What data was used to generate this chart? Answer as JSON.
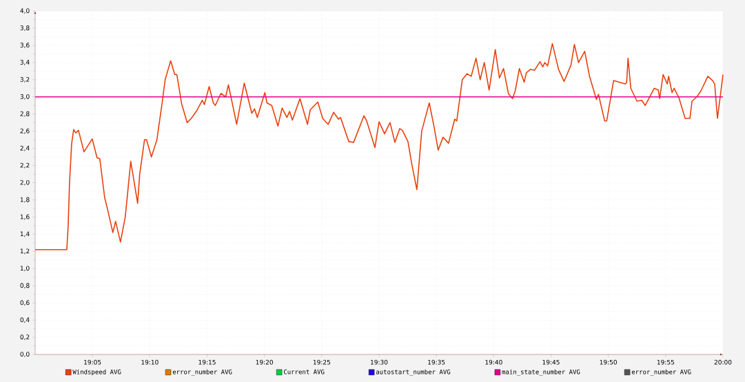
{
  "chart_data": {
    "type": "line",
    "xlim": [
      19,
      20
    ],
    "xticks": [
      {
        "value": 19.0833,
        "label": "19:05"
      },
      {
        "value": 19.1667,
        "label": "19:10"
      },
      {
        "value": 19.25,
        "label": "19:15"
      },
      {
        "value": 19.3333,
        "label": "19:20"
      },
      {
        "value": 19.4167,
        "label": "19:25"
      },
      {
        "value": 19.5,
        "label": "19:30"
      },
      {
        "value": 19.5833,
        "label": "19:35"
      },
      {
        "value": 19.6667,
        "label": "19:40"
      },
      {
        "value": 19.75,
        "label": "19:45"
      },
      {
        "value": 19.8333,
        "label": "19:50"
      },
      {
        "value": 19.9167,
        "label": "19:55"
      },
      {
        "value": 20,
        "label": "20:00"
      }
    ],
    "ylim": [
      0,
      4
    ],
    "yticks": [
      {
        "value": 0,
        "label": "0,0"
      },
      {
        "value": 0.2,
        "label": "0,2"
      },
      {
        "value": 0.4,
        "label": "0,4"
      },
      {
        "value": 0.6,
        "label": "0,6"
      },
      {
        "value": 0.8,
        "label": "0,8"
      },
      {
        "value": 1.0,
        "label": "1,0"
      },
      {
        "value": 1.2,
        "label": "1,2"
      },
      {
        "value": 1.4,
        "label": "1,4"
      },
      {
        "value": 1.6,
        "label": "1,6"
      },
      {
        "value": 1.8,
        "label": "1,8"
      },
      {
        "value": 2.0,
        "label": "2,0"
      },
      {
        "value": 2.2,
        "label": "2,2"
      },
      {
        "value": 2.4,
        "label": "2,4"
      },
      {
        "value": 2.6,
        "label": "2,6"
      },
      {
        "value": 2.8,
        "label": "2,8"
      },
      {
        "value": 3.0,
        "label": "3,0"
      },
      {
        "value": 3.2,
        "label": "3,2"
      },
      {
        "value": 3.4,
        "label": "3,4"
      },
      {
        "value": 3.6,
        "label": "3,6"
      },
      {
        "value": 3.8,
        "label": "3,8"
      },
      {
        "value": 4.0,
        "label": "4,0"
      }
    ],
    "grid": true,
    "legend": "bottom",
    "marker": "none",
    "line_style": "solid",
    "series": [
      {
        "name": "Windspeed AVG",
        "color": "#e8400c",
        "x": [
          19.0,
          19.046,
          19.048,
          19.05,
          19.053,
          19.056,
          19.059,
          19.063,
          19.071,
          19.083,
          19.09,
          19.094,
          19.101,
          19.105,
          19.113,
          19.117,
          19.124,
          19.131,
          19.139,
          19.149,
          19.152,
          19.159,
          19.162,
          19.169,
          19.177,
          19.185,
          19.189,
          19.197,
          19.203,
          19.206,
          19.213,
          19.221,
          19.227,
          19.235,
          19.243,
          19.246,
          19.253,
          19.259,
          19.262,
          19.27,
          19.277,
          19.281,
          19.293,
          19.304,
          19.315,
          19.319,
          19.323,
          19.334,
          19.337,
          19.344,
          19.353,
          19.359,
          19.366,
          19.37,
          19.374,
          19.385,
          19.396,
          19.4,
          19.411,
          19.418,
          19.426,
          19.434,
          19.441,
          19.444,
          19.456,
          19.463,
          19.478,
          19.482,
          19.494,
          19.5,
          19.508,
          19.516,
          19.523,
          19.53,
          19.534,
          19.542,
          19.548,
          19.555,
          19.562,
          19.573,
          19.58,
          19.586,
          19.593,
          19.601,
          19.61,
          19.613,
          19.621,
          19.628,
          19.634,
          19.641,
          19.647,
          19.653,
          19.66,
          19.669,
          19.675,
          19.681,
          19.688,
          19.694,
          19.698,
          19.704,
          19.711,
          19.714,
          19.72,
          19.726,
          19.734,
          19.738,
          19.741,
          19.745,
          19.752,
          19.761,
          19.769,
          19.779,
          19.784,
          19.79,
          19.799,
          19.806,
          19.816,
          19.819,
          19.828,
          19.831,
          19.841,
          19.858,
          19.86,
          19.862,
          19.866,
          19.875,
          19.882,
          19.887,
          19.9,
          19.906,
          19.908,
          19.913,
          19.919,
          19.921,
          19.926,
          19.929,
          19.936,
          19.945,
          19.952,
          19.955,
          19.962,
          19.968,
          19.978,
          19.985,
          19.988,
          19.992,
          19.996,
          20.0
        ],
        "values": [
          1.22,
          1.22,
          1.5,
          2.0,
          2.45,
          2.62,
          2.58,
          2.61,
          2.36,
          2.51,
          2.29,
          2.28,
          1.83,
          1.7,
          1.42,
          1.55,
          1.31,
          1.6,
          2.25,
          1.76,
          2.1,
          2.5,
          2.5,
          2.3,
          2.5,
          2.95,
          3.2,
          3.42,
          3.26,
          3.26,
          2.92,
          2.7,
          2.75,
          2.84,
          2.96,
          2.91,
          3.12,
          2.93,
          2.9,
          3.04,
          3.0,
          3.14,
          2.68,
          3.16,
          2.81,
          2.86,
          2.76,
          3.05,
          2.93,
          2.9,
          2.66,
          2.87,
          2.76,
          2.83,
          2.73,
          2.98,
          2.68,
          2.85,
          2.94,
          2.75,
          2.68,
          2.82,
          2.74,
          2.76,
          2.48,
          2.47,
          2.78,
          2.72,
          2.41,
          2.71,
          2.57,
          2.7,
          2.47,
          2.63,
          2.61,
          2.48,
          2.2,
          1.92,
          2.6,
          2.93,
          2.65,
          2.38,
          2.53,
          2.46,
          2.74,
          2.72,
          3.2,
          3.27,
          3.24,
          3.45,
          3.2,
          3.4,
          3.08,
          3.55,
          3.22,
          3.33,
          3.04,
          2.98,
          3.07,
          3.33,
          3.17,
          3.28,
          3.32,
          3.31,
          3.41,
          3.35,
          3.4,
          3.36,
          3.62,
          3.32,
          3.18,
          3.37,
          3.61,
          3.4,
          3.53,
          3.24,
          2.97,
          3.03,
          2.72,
          2.72,
          3.19,
          3.15,
          3.17,
          3.45,
          3.1,
          2.95,
          2.96,
          2.9,
          3.1,
          3.08,
          2.98,
          3.26,
          3.15,
          3.24,
          3.05,
          3.1,
          2.99,
          2.75,
          2.75,
          2.95,
          3.0,
          3.07,
          3.24,
          3.19,
          3.15,
          2.75,
          3.0,
          3.26
        ]
      },
      {
        "name": "error_number AVG",
        "color": "#e07b00"
      },
      {
        "name": "Current AVG",
        "color": "#00cc44"
      },
      {
        "name": "autostart_number AVG",
        "color": "#2200ee"
      },
      {
        "name": "main_state_number AVG",
        "color": "#e0008c",
        "x": [
          19,
          20
        ],
        "values": [
          3.0,
          3.0
        ]
      },
      {
        "name": "error_number AVG",
        "color": "#555555"
      }
    ]
  }
}
